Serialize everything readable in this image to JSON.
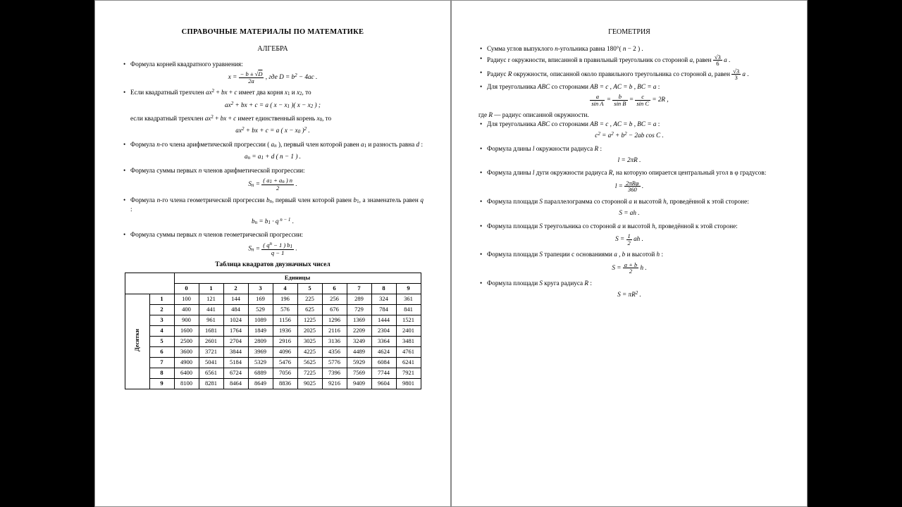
{
  "left": {
    "title": "СПРАВОЧНЫЕ МАТЕРИАЛЫ ПО МАТЕМАТИКЕ",
    "subtitle": "АЛГЕБРА",
    "b1": "Формула корней квадратного уравнения:",
    "b2a": "Если квадратный трехчлен ",
    "b2b": " имеет два корня ",
    "b2c": " и ",
    "b2d": ", то",
    "b2e": "если квадратный трехчлен ",
    "b2f": " имеет единственный корень ",
    "b2g": ", то",
    "b3a": "Формула ",
    "b3b": "-го члена арифметической прогрессии ",
    "b3c": ", первый член которой равен ",
    "b3d": " и разность равна ",
    "b4a": "Формула суммы первых ",
    "b4b": " членов арифметической прогрессии:",
    "b5a": "Формула ",
    "b5b": "-го члена геометрической прогрессии ",
    "b5c": ", первый член которой равен ",
    "b5d": ", а знаменатель равен ",
    "b6a": "Формула суммы первых ",
    "b6b": " членов геометрической прогрессии:",
    "tableTitle": "Таблица квадратов двузначных чисел",
    "unitsHeader": "Единицы",
    "tensHeader": "Десятки",
    "cols": [
      "0",
      "1",
      "2",
      "3",
      "4",
      "5",
      "6",
      "7",
      "8",
      "9"
    ],
    "rows": [
      {
        "h": "1",
        "c": [
          "100",
          "121",
          "144",
          "169",
          "196",
          "225",
          "256",
          "289",
          "324",
          "361"
        ]
      },
      {
        "h": "2",
        "c": [
          "400",
          "441",
          "484",
          "529",
          "576",
          "625",
          "676",
          "729",
          "784",
          "841"
        ]
      },
      {
        "h": "3",
        "c": [
          "900",
          "961",
          "1024",
          "1089",
          "1156",
          "1225",
          "1296",
          "1369",
          "1444",
          "1521"
        ]
      },
      {
        "h": "4",
        "c": [
          "1600",
          "1681",
          "1764",
          "1849",
          "1936",
          "2025",
          "2116",
          "2209",
          "2304",
          "2401"
        ]
      },
      {
        "h": "5",
        "c": [
          "2500",
          "2601",
          "2704",
          "2809",
          "2916",
          "3025",
          "3136",
          "3249",
          "3364",
          "3481"
        ]
      },
      {
        "h": "6",
        "c": [
          "3600",
          "3721",
          "3844",
          "3969",
          "4096",
          "4225",
          "4356",
          "4489",
          "4624",
          "4761"
        ]
      },
      {
        "h": "7",
        "c": [
          "4900",
          "5041",
          "5184",
          "5329",
          "5476",
          "5625",
          "5776",
          "5929",
          "6084",
          "6241"
        ]
      },
      {
        "h": "8",
        "c": [
          "6400",
          "6561",
          "6724",
          "6889",
          "7056",
          "7225",
          "7396",
          "7569",
          "7744",
          "7921"
        ]
      },
      {
        "h": "9",
        "c": [
          "8100",
          "8281",
          "8464",
          "8649",
          "8836",
          "9025",
          "9216",
          "9409",
          "9604",
          "9801"
        ]
      }
    ]
  },
  "right": {
    "title": "ГЕОМЕТРИЯ",
    "g1a": "Сумма углов выпуклого ",
    "g1b": "-угольника равна ",
    "g2a": "Радиус r окружности, вписанной в правильный треугольник со стороной ",
    "g2b": ", равен ",
    "g3a": "Радиус ",
    "g3b": " окружности, описанной около правильного треугольника со стороной ",
    "g3c": ", равен ",
    "g4a": "Для треугольника ",
    "g4b": " со сторонами ",
    "g4r": " — радиус описанной окружности.",
    "g4where": "где ",
    "g5a": "Для треугольника ",
    "g5b": " со сторонами ",
    "g6a": "Формула длины ",
    "g6b": " окружности радиуса ",
    "g7a": "Формула длины ",
    "g7b": " дуги окружности радиуса ",
    "g7c": ", на которую опирается центральный угол в φ градусов:",
    "g8a": "Формула площади ",
    "g8b": " параллелограмма со стороной ",
    "g8c": " и высотой ",
    "g8d": ", проведённой к этой стороне:",
    "g9a": "Формула площади ",
    "g9b": " треугольника со стороной ",
    "g9c": " и высотой ",
    "g9d": ", проведённой к этой стороне:",
    "g10a": "Формула площади ",
    "g10b": " трапеции с основаниями ",
    "g10c": " и высотой ",
    "g11a": "Формула площади ",
    "g11b": " круга радиуса "
  },
  "style": {
    "background": "#000000",
    "paper": "#ffffff",
    "border": "#888888",
    "text": "#000000",
    "fontBody": 9.2,
    "fontTitle": 10.5,
    "fontTable": 8.5
  }
}
